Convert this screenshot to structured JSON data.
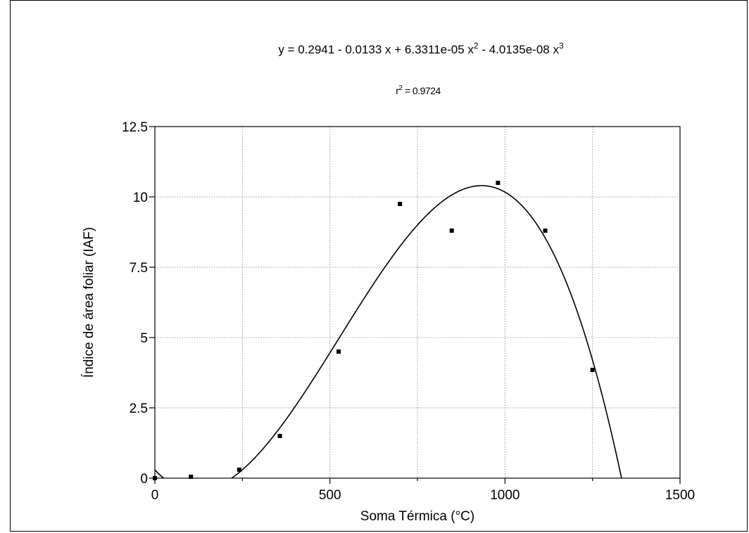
{
  "chart_data": {
    "type": "scatter",
    "title": "",
    "equation": {
      "prefix": "y = 0.2941 - 0.0133 x + 6.3311e-05 x",
      "exp1": "2",
      "middle": " - 4.0135e-08  x",
      "exp2": "3"
    },
    "r_squared": {
      "label": "r",
      "exp": "2",
      "value": " = 0.9724"
    },
    "xlabel": "Soma Térmica (°C)",
    "ylabel": "Índice de área foliar  (IAF)",
    "xlim": [
      0,
      1500
    ],
    "ylim": [
      0,
      12.5
    ],
    "x_ticks": [
      {
        "value": 0,
        "label": "0"
      },
      {
        "value": 500,
        "label": "500"
      },
      {
        "value": 1000,
        "label": "1000"
      },
      {
        "value": 1500,
        "label": "1500"
      }
    ],
    "y_ticks": [
      {
        "value": 0,
        "label": "0"
      },
      {
        "value": 2.5,
        "label": "2.5"
      },
      {
        "value": 5,
        "label": "5"
      },
      {
        "value": 7.5,
        "label": "7.5"
      },
      {
        "value": 10,
        "label": "10"
      },
      {
        "value": 12.5,
        "label": "12.5"
      }
    ],
    "minor_x_ticks": [
      250,
      750,
      1250
    ],
    "grid": true,
    "points": [
      {
        "x": 0,
        "y": 0.0
      },
      {
        "x": 103,
        "y": 0.05
      },
      {
        "x": 241,
        "y": 0.3
      },
      {
        "x": 357,
        "y": 1.5
      },
      {
        "x": 525,
        "y": 4.5
      },
      {
        "x": 700,
        "y": 9.75
      },
      {
        "x": 848,
        "y": 8.8
      },
      {
        "x": 980,
        "y": 10.5
      },
      {
        "x": 1115,
        "y": 8.8
      },
      {
        "x": 1250,
        "y": 3.85
      }
    ],
    "fit": {
      "type": "polynomial",
      "coefficients": [
        0.2941,
        -0.0133,
        6.3311e-05,
        -4.0135e-08
      ]
    }
  }
}
